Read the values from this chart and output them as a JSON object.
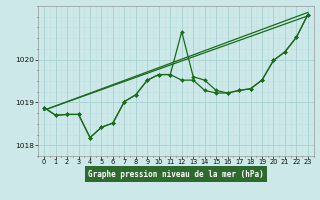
{
  "xlabel": "Graphe pression niveau de la mer (hPa)",
  "bg_color": "#cce8e8",
  "label_bg": "#1a5c1a",
  "line_color": "#1a6b1a",
  "grid_color_major": "#aad4d4",
  "grid_color_minor": "#c0e0e0",
  "xlim": [
    -0.5,
    23.5
  ],
  "ylim": [
    1017.75,
    1021.25
  ],
  "yticks": [
    1018,
    1019,
    1020
  ],
  "xticks": [
    0,
    1,
    2,
    3,
    4,
    5,
    6,
    7,
    8,
    9,
    10,
    11,
    12,
    13,
    14,
    15,
    16,
    17,
    18,
    19,
    20,
    21,
    22,
    23
  ],
  "line1": {
    "x": [
      0,
      1,
      2,
      3,
      4,
      5,
      6,
      7,
      8,
      9,
      10,
      11,
      12,
      13,
      14,
      15,
      16,
      17,
      18,
      19,
      20,
      21,
      22,
      23
    ],
    "y": [
      1018.88,
      1018.7,
      1018.72,
      1018.72,
      1018.18,
      1018.42,
      1018.52,
      1019.02,
      1019.18,
      1019.52,
      1019.65,
      1019.65,
      1020.65,
      1019.6,
      1019.52,
      1019.28,
      1019.22,
      1019.28,
      1019.32,
      1019.52,
      1019.98,
      1020.18,
      1020.52,
      1021.05
    ]
  },
  "line2": {
    "x": [
      0,
      1,
      2,
      3,
      4,
      5,
      6,
      7,
      8,
      9,
      10,
      11,
      12,
      13,
      14,
      15,
      16,
      17,
      18,
      19,
      20,
      21,
      22,
      23
    ],
    "y": [
      1018.88,
      1018.7,
      1018.72,
      1018.72,
      1018.18,
      1018.42,
      1018.52,
      1019.02,
      1019.18,
      1019.52,
      1019.65,
      1019.65,
      1019.52,
      1019.52,
      1019.28,
      1019.22,
      1019.22,
      1019.28,
      1019.32,
      1019.52,
      1019.98,
      1020.18,
      1020.52,
      1021.05
    ]
  },
  "trend1": {
    "x": [
      0,
      23
    ],
    "y": [
      1018.82,
      1021.1
    ]
  },
  "trend2": {
    "x": [
      0,
      23
    ],
    "y": [
      1018.82,
      1021.02
    ]
  },
  "label_fontsize": 5.5,
  "tick_fontsize": 4.8
}
